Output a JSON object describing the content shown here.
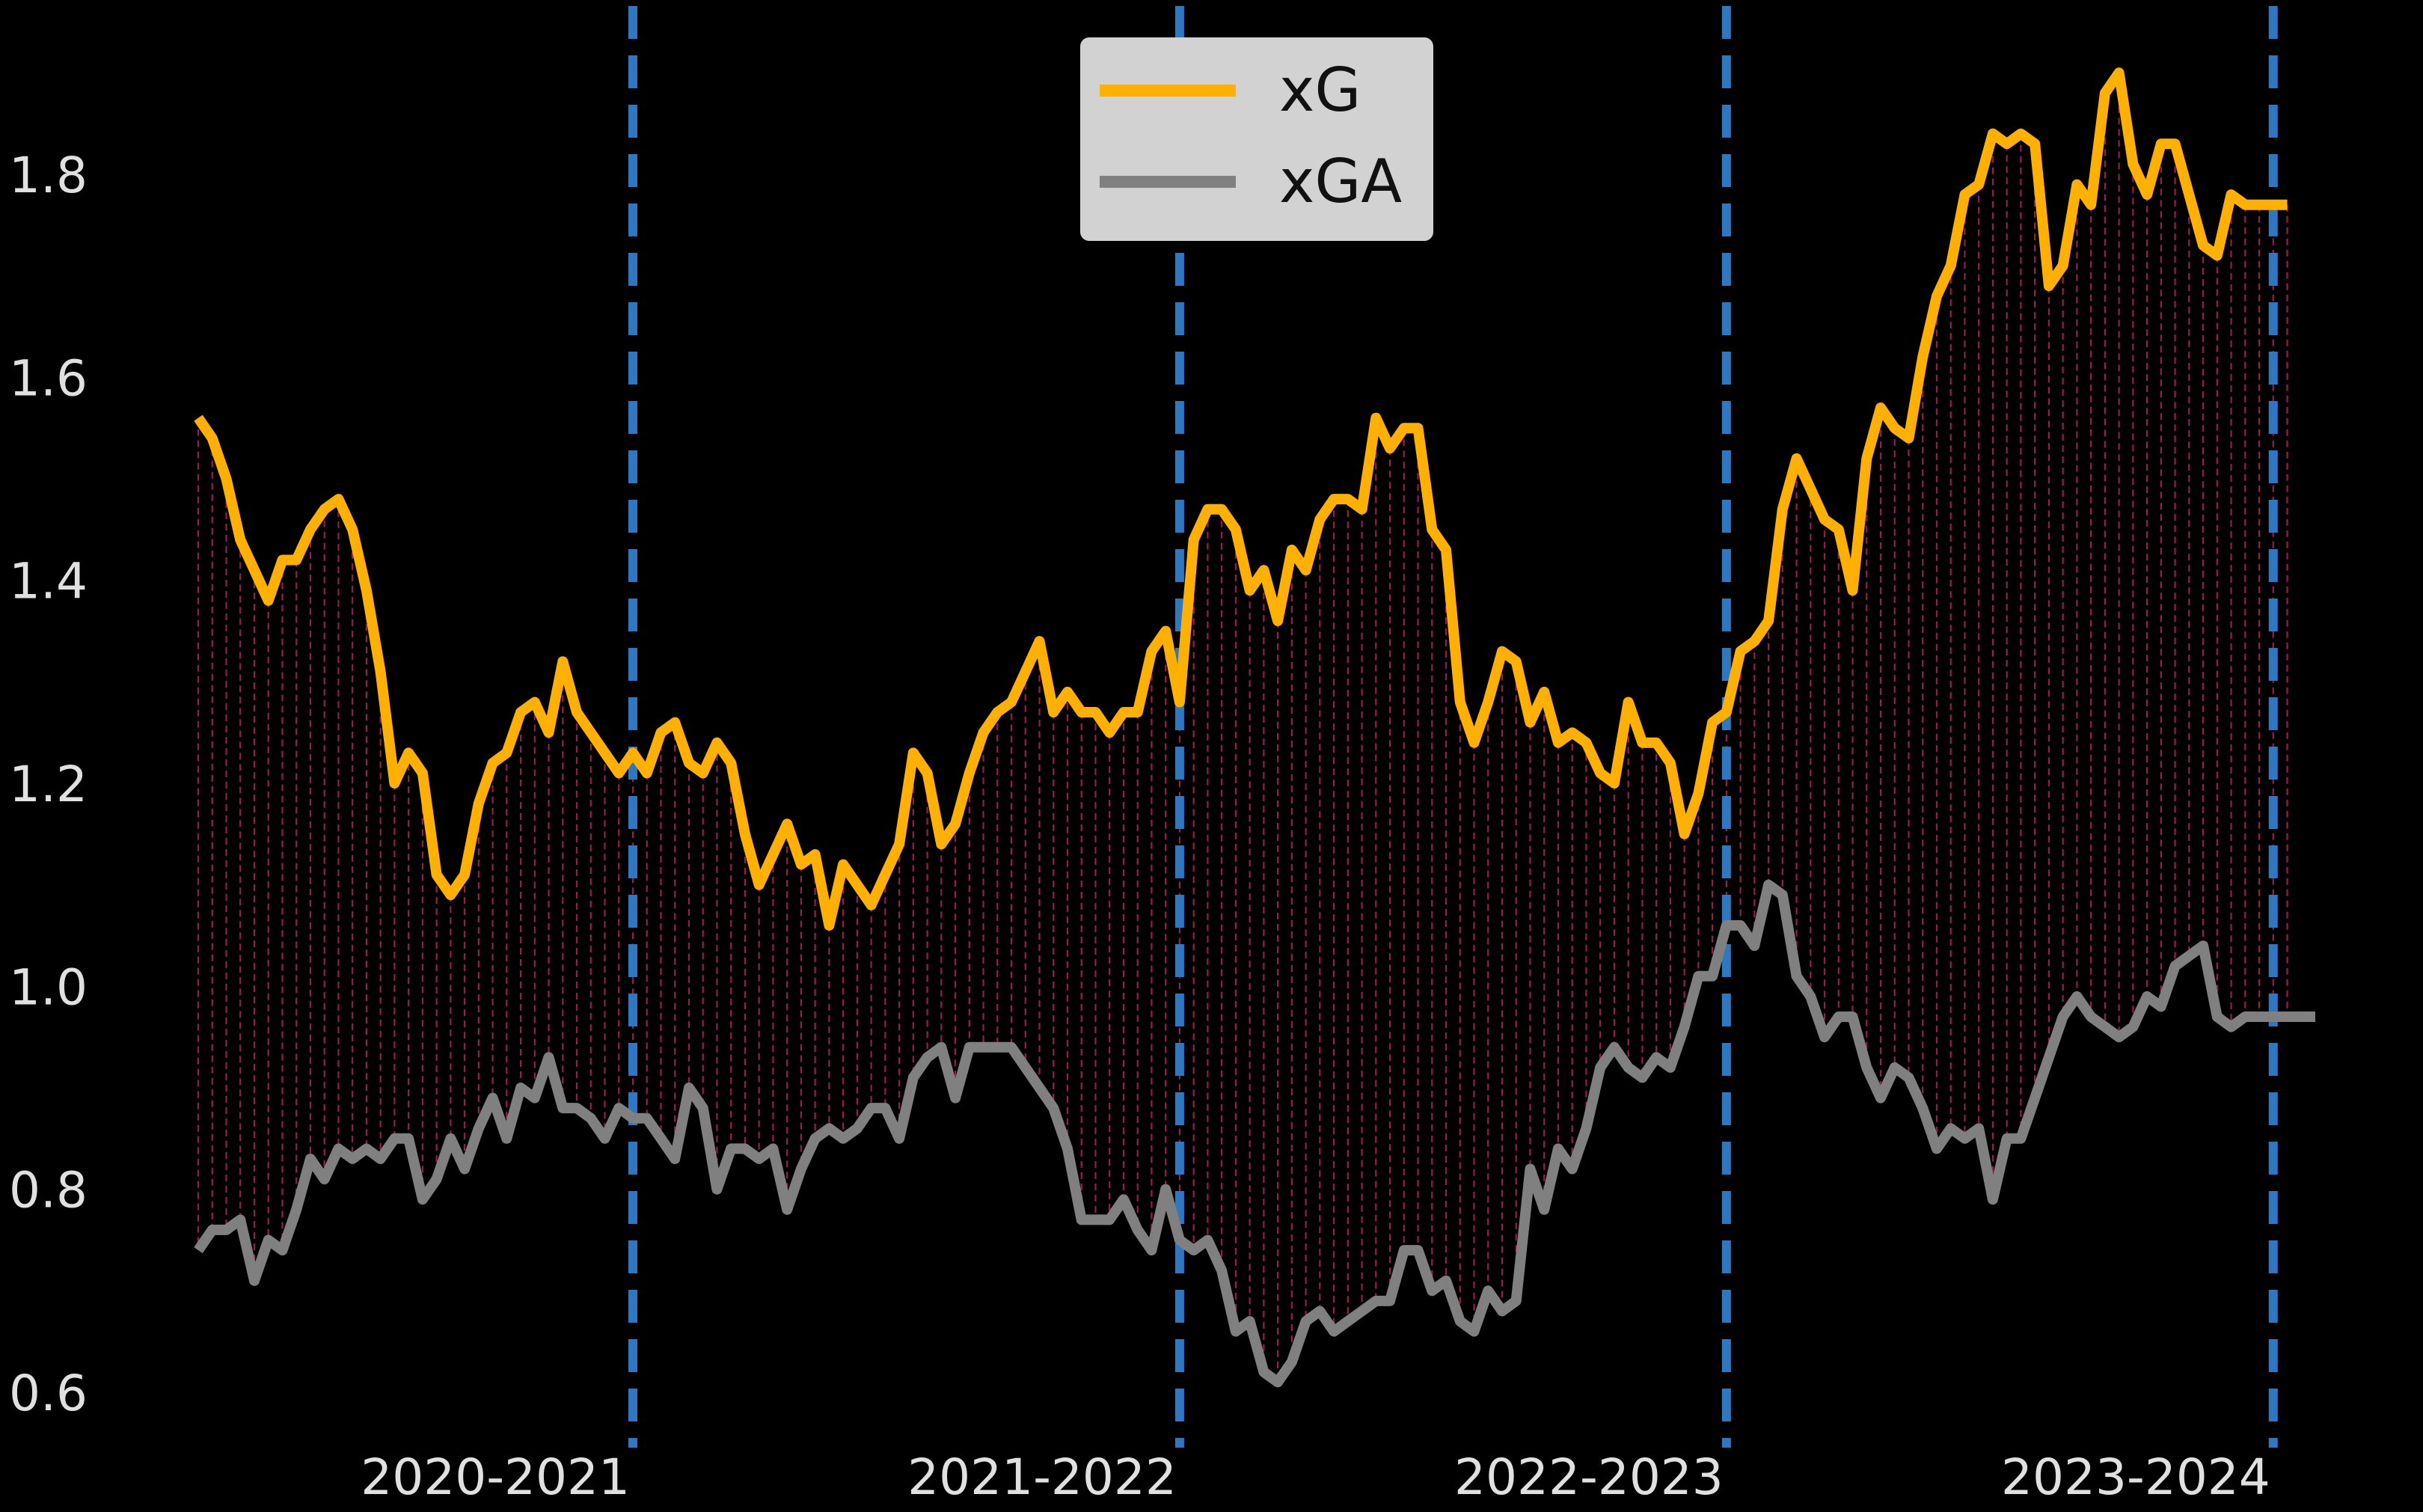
{
  "chart_data": {
    "type": "line",
    "title": "",
    "xlabel": "",
    "ylabel": "",
    "ylim": [
      0.545,
      1.92
    ],
    "grid": false,
    "legend_placement": "top-center",
    "background_color": "#000000",
    "fill_color": "#b0245a",
    "season_divider_color": "#2e78c2",
    "yticks": [
      0.6,
      0.8,
      1.0,
      1.2,
      1.4,
      1.6,
      1.8
    ],
    "ytick_labels": [
      "0.6",
      "0.8",
      "1.0",
      "1.2",
      "1.4",
      "1.6",
      "1.8"
    ],
    "seasons": [
      "2020-2021",
      "2021-2022",
      "2022-2023",
      "2023-2024"
    ],
    "season_boundaries": [
      31,
      70,
      109,
      148
    ],
    "x_count": 152,
    "series": [
      {
        "name": "xG",
        "color": "#ffb000",
        "values": [
          1.56,
          1.54,
          1.5,
          1.44,
          1.41,
          1.38,
          1.42,
          1.42,
          1.45,
          1.47,
          1.48,
          1.45,
          1.39,
          1.31,
          1.2,
          1.23,
          1.21,
          1.11,
          1.09,
          1.11,
          1.18,
          1.22,
          1.23,
          1.27,
          1.28,
          1.25,
          1.32,
          1.27,
          1.25,
          1.23,
          1.21,
          1.23,
          1.21,
          1.25,
          1.26,
          1.22,
          1.21,
          1.24,
          1.22,
          1.15,
          1.1,
          1.13,
          1.16,
          1.12,
          1.13,
          1.06,
          1.12,
          1.1,
          1.08,
          1.11,
          1.14,
          1.23,
          1.21,
          1.14,
          1.16,
          1.21,
          1.25,
          1.27,
          1.28,
          1.31,
          1.34,
          1.27,
          1.29,
          1.27,
          1.27,
          1.25,
          1.27,
          1.27,
          1.33,
          1.35,
          1.28,
          1.44,
          1.47,
          1.47,
          1.45,
          1.39,
          1.41,
          1.36,
          1.43,
          1.41,
          1.46,
          1.48,
          1.48,
          1.47,
          1.56,
          1.53,
          1.55,
          1.55,
          1.45,
          1.43,
          1.28,
          1.24,
          1.28,
          1.33,
          1.32,
          1.26,
          1.29,
          1.24,
          1.25,
          1.24,
          1.21,
          1.2,
          1.28,
          1.24,
          1.24,
          1.22,
          1.15,
          1.19,
          1.26,
          1.27,
          1.33,
          1.34,
          1.36,
          1.47,
          1.52,
          1.49,
          1.46,
          1.45,
          1.39,
          1.52,
          1.57,
          1.55,
          1.54,
          1.62,
          1.68,
          1.71,
          1.78,
          1.79,
          1.84,
          1.83,
          1.84,
          1.83,
          1.69,
          1.71,
          1.79,
          1.77,
          1.88,
          1.9,
          1.81,
          1.78,
          1.83,
          1.83,
          1.78,
          1.73,
          1.72,
          1.78,
          1.77,
          1.77,
          1.77,
          1.77
        ]
      },
      {
        "name": "xGA",
        "color": "#808080",
        "values": [
          0.74,
          0.76,
          0.76,
          0.77,
          0.71,
          0.75,
          0.74,
          0.78,
          0.83,
          0.81,
          0.84,
          0.83,
          0.84,
          0.83,
          0.85,
          0.85,
          0.79,
          0.81,
          0.85,
          0.82,
          0.86,
          0.89,
          0.85,
          0.9,
          0.89,
          0.93,
          0.88,
          0.88,
          0.87,
          0.85,
          0.88,
          0.87,
          0.87,
          0.85,
          0.83,
          0.9,
          0.88,
          0.8,
          0.84,
          0.84,
          0.83,
          0.84,
          0.78,
          0.82,
          0.85,
          0.86,
          0.85,
          0.86,
          0.88,
          0.88,
          0.85,
          0.91,
          0.93,
          0.94,
          0.89,
          0.94,
          0.94,
          0.94,
          0.94,
          0.92,
          0.9,
          0.88,
          0.84,
          0.77,
          0.77,
          0.77,
          0.79,
          0.76,
          0.74,
          0.8,
          0.75,
          0.74,
          0.75,
          0.72,
          0.66,
          0.67,
          0.62,
          0.61,
          0.63,
          0.67,
          0.68,
          0.66,
          0.67,
          0.68,
          0.69,
          0.69,
          0.74,
          0.74,
          0.7,
          0.71,
          0.67,
          0.66,
          0.7,
          0.68,
          0.69,
          0.82,
          0.78,
          0.84,
          0.82,
          0.86,
          0.92,
          0.94,
          0.92,
          0.91,
          0.93,
          0.92,
          0.96,
          1.01,
          1.01,
          1.06,
          1.06,
          1.04,
          1.1,
          1.09,
          1.01,
          0.99,
          0.95,
          0.97,
          0.97,
          0.92,
          0.89,
          0.92,
          0.91,
          0.88,
          0.84,
          0.86,
          0.85,
          0.86,
          0.79,
          0.85,
          0.85,
          0.89,
          0.93,
          0.97,
          0.99,
          0.97,
          0.96,
          0.95,
          0.96,
          0.99,
          0.98,
          1.02,
          1.03,
          1.04,
          0.97,
          0.96,
          0.97,
          0.97,
          0.97,
          0.97,
          0.97,
          0.97
        ]
      }
    ]
  }
}
